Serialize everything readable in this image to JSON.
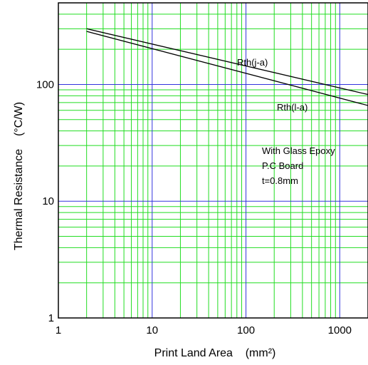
{
  "chart_data": {
    "type": "line",
    "title": "",
    "xlabel": "Print Land Area    (mm²)",
    "ylabel": "Thermal Resistance    (°C/W)",
    "x_scale": "log",
    "y_scale": "log",
    "xlim": [
      1,
      2000
    ],
    "ylim": [
      1,
      500
    ],
    "x_ticks": [
      {
        "value": 1,
        "label": "1"
      },
      {
        "value": 10,
        "label": "10"
      },
      {
        "value": 100,
        "label": "100"
      },
      {
        "value": 1000,
        "label": "1000"
      }
    ],
    "y_ticks": [
      {
        "value": 1,
        "label": "1"
      },
      {
        "value": 10,
        "label": "10"
      },
      {
        "value": 100,
        "label": "100"
      }
    ],
    "grid": true,
    "series": [
      {
        "name": "Rth(j-a)",
        "x": [
          2,
          2000
        ],
        "y": [
          300,
          82
        ],
        "color": "#000000"
      },
      {
        "name": "Rth(l-a)",
        "x": [
          2,
          2000
        ],
        "y": [
          285,
          66
        ],
        "color": "#000000"
      }
    ],
    "annotations": [
      {
        "text": "With Glass Epoxy"
      },
      {
        "text": "P.C Board"
      },
      {
        "text": "t=0.8mm"
      }
    ],
    "colors": {
      "minor_grid": "#22dd22",
      "major_grid": "#3333dd",
      "frame": "#000000"
    }
  }
}
